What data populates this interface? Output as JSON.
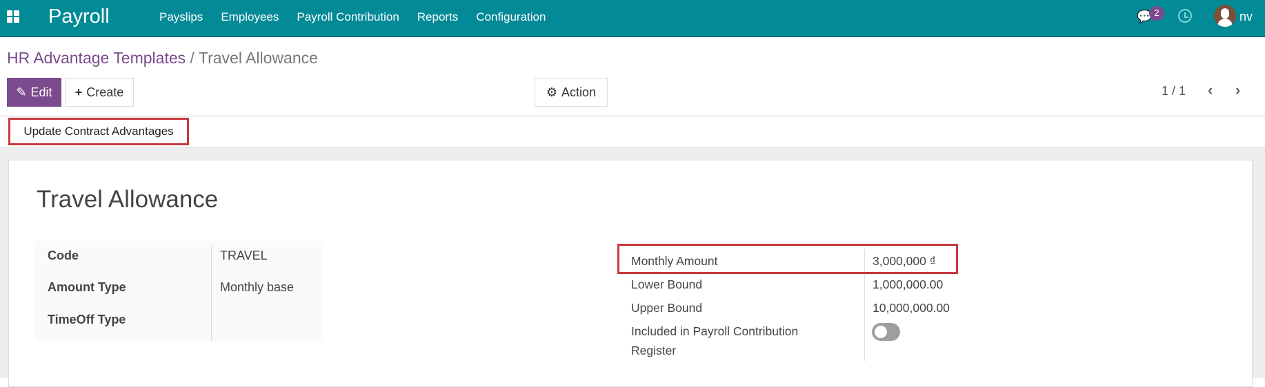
{
  "navbar": {
    "app_title": "Payroll",
    "menu": [
      "Payslips",
      "Employees",
      "Payroll Contribution",
      "Reports",
      "Configuration"
    ],
    "message_count": "2",
    "user": "nv",
    "color": "#028a97"
  },
  "breadcrumb": {
    "parent": "HR Advantage Templates",
    "separator": "/",
    "current": "Travel Allowance"
  },
  "toolbar": {
    "edit": "Edit",
    "create": "Create",
    "action": "Action",
    "pager": "1 / 1"
  },
  "statusbar": {
    "update_button": "Update Contract Advantages"
  },
  "form": {
    "title": "Travel Allowance",
    "left": [
      {
        "label": "Code",
        "value": "TRAVEL"
      },
      {
        "label": "Amount Type",
        "value": "Monthly base"
      },
      {
        "label": "TimeOff Type",
        "value": ""
      }
    ],
    "right": {
      "monthly_amount_label": "Monthly Amount",
      "monthly_amount": "3,000,000 ₫",
      "lower_label": "Lower Bound",
      "lower": "1,000,000.00",
      "upper_label": "Upper Bound",
      "upper": "10,000,000.00",
      "included_label": "Included in Payroll Contribution Register",
      "included": false
    }
  }
}
